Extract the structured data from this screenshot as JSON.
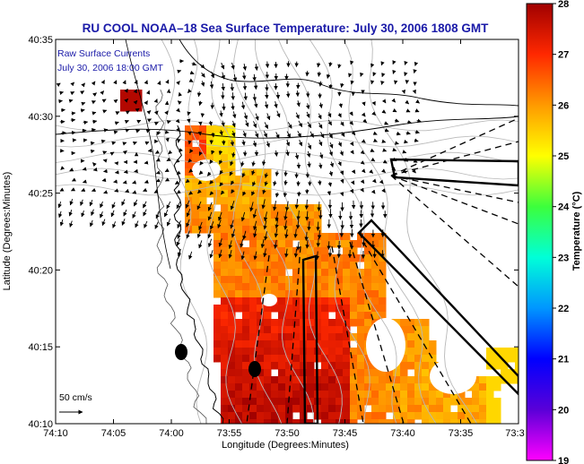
{
  "chart_data": {
    "type": "heatmap",
    "title": "RU COOL  NOAA–18  Sea Surface Temperature:  July 30, 2006 1808 GMT",
    "xlabel": "Longitude (Degrees:Minutes)",
    "ylabel": "Latitude (Degrees:Minutes)",
    "colorbar_label": "Temperature (°C)",
    "x_ticks": [
      "74:10",
      "74:05",
      "74:00",
      "73:55",
      "73:50",
      "73:45",
      "73:40",
      "73:35",
      "73:3"
    ],
    "y_ticks": [
      "40:35",
      "40:30",
      "40:25",
      "40:20",
      "40:15",
      "40:10"
    ],
    "colorbar_ticks": [
      "28",
      "27",
      "26",
      "25",
      "24",
      "23",
      "22",
      "21",
      "20",
      "19"
    ],
    "colorbar_range": [
      19,
      28
    ],
    "colormap": [
      "#ff00ff",
      "#5a00d8",
      "#0000ff",
      "#0096ff",
      "#00ffd8",
      "#3cff3c",
      "#ffff00",
      "#ff9a00",
      "#ff2800",
      "#a00000"
    ],
    "annotation_lines": [
      "Raw Surface Currents",
      "July 30, 2006 18:00 GMT"
    ],
    "scale_label": "50 cm/s",
    "grid": false,
    "colors": {
      "title": "#1a1aa8",
      "annotation": "#1a1aa8",
      "vectors": "#000000",
      "bathymetry": "#b8b8b8",
      "coastline": "#000000"
    }
  }
}
